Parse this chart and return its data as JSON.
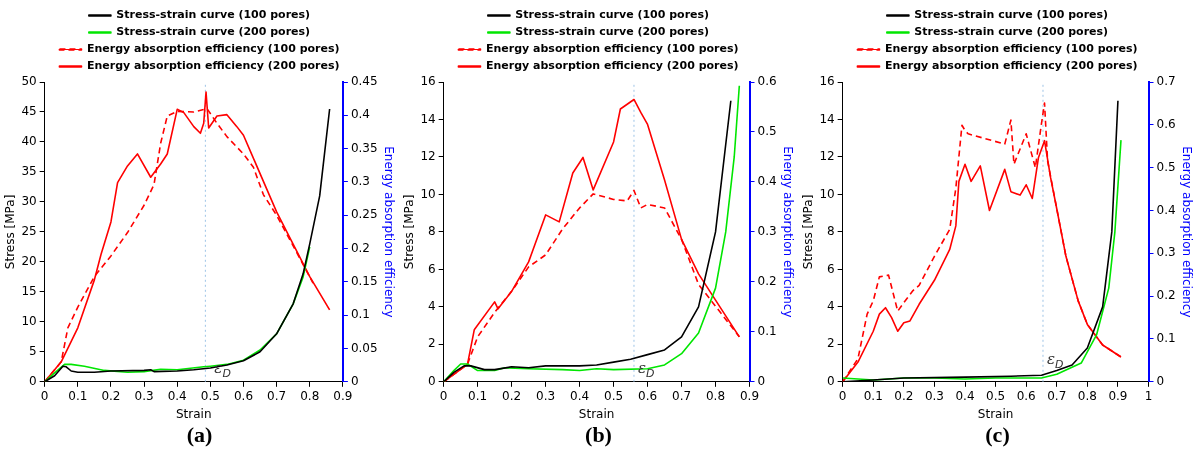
{
  "chart_data": [
    {
      "type": "line",
      "title": "(a)",
      "xlabel": "Strain",
      "ylabel": "Stress [MPa]",
      "y2label": "Energy absorption efficiency",
      "legend": "top",
      "grid": false,
      "marker": "none",
      "xlim": [
        0,
        0.9
      ],
      "xticks": [
        0,
        0.1,
        0.2,
        0.3,
        0.4,
        0.5,
        0.6,
        0.7,
        0.8,
        0.9
      ],
      "ylim": [
        0,
        50
      ],
      "yticks": [
        0,
        5,
        10,
        15,
        20,
        25,
        30,
        35,
        40,
        45,
        50
      ],
      "y2lim": [
        0,
        0.45
      ],
      "y2ticks": [
        0,
        0.05,
        0.1,
        0.15,
        0.2,
        0.25,
        0.3,
        0.35,
        0.4,
        0.45
      ],
      "ref_lines": [
        {
          "axis": "x",
          "value": 0.485,
          "color": "#9dc3e6",
          "line_style": "dotted"
        }
      ],
      "annotations": [
        {
          "text": "ε$_{D}$",
          "x": 0.5,
          "y": 1
        }
      ],
      "series": [
        {
          "name": "Stress-strain curve (100 pores)",
          "color": "#000000",
          "line_style": "solid",
          "x": [
            0,
            0.03,
            0.055,
            0.065,
            0.08,
            0.1,
            0.15,
            0.2,
            0.3,
            0.32,
            0.33,
            0.4,
            0.45,
            0.5,
            0.55,
            0.6,
            0.65,
            0.7,
            0.75,
            0.78,
            0.8,
            0.83,
            0.86
          ],
          "values": [
            0,
            1,
            2.6,
            2.5,
            1.8,
            1.6,
            1.6,
            1.8,
            1.9,
            2,
            1.7,
            1.8,
            2,
            2.3,
            2.8,
            3.5,
            5,
            8,
            13,
            18,
            23,
            31,
            45.5
          ]
        },
        {
          "name": "Stress-strain curve (200 pores)",
          "color": "#00e600",
          "line_style": "solid",
          "x": [
            0,
            0.03,
            0.06,
            0.08,
            0.12,
            0.18,
            0.25,
            0.3,
            0.35,
            0.4,
            0.48,
            0.5,
            0.55,
            0.6,
            0.65,
            0.7,
            0.75,
            0.78,
            0.8
          ],
          "values": [
            0,
            1.5,
            2.9,
            2.9,
            2.6,
            1.9,
            1.6,
            1.7,
            2.1,
            2,
            2.5,
            2.6,
            2.9,
            3.6,
            5.3,
            8,
            13,
            17.5,
            22.5
          ]
        },
        {
          "name": "Energy absorption efficiency (100 pores)",
          "color": "#ff0000",
          "line_style": "dashed",
          "axis": "y2",
          "x": [
            0,
            0.05,
            0.07,
            0.1,
            0.15,
            0.2,
            0.25,
            0.3,
            0.33,
            0.35,
            0.37,
            0.4,
            0.45,
            0.49,
            0.52,
            0.55,
            0.6,
            0.63,
            0.66,
            0.7,
            0.75,
            0.81
          ],
          "values": [
            0,
            0.03,
            0.081,
            0.112,
            0.158,
            0.189,
            0.224,
            0.265,
            0.296,
            0.358,
            0.399,
            0.406,
            0.405,
            0.41,
            0.388,
            0.368,
            0.342,
            0.322,
            0.281,
            0.25,
            0.204,
            0.148
          ]
        },
        {
          "name": "Energy absorption efficiency (200 pores)",
          "color": "#ff0000",
          "line_style": "solid",
          "axis": "y2",
          "x": [
            0,
            0.05,
            0.1,
            0.15,
            0.17,
            0.2,
            0.22,
            0.25,
            0.28,
            0.32,
            0.35,
            0.37,
            0.4,
            0.42,
            0.45,
            0.47,
            0.48,
            0.487,
            0.495,
            0.52,
            0.55,
            0.58,
            0.6,
            0.62,
            0.7,
            0.8,
            0.86
          ],
          "values": [
            0,
            0.03,
            0.081,
            0.153,
            0.191,
            0.24,
            0.299,
            0.324,
            0.342,
            0.307,
            0.327,
            0.342,
            0.409,
            0.404,
            0.383,
            0.373,
            0.388,
            0.435,
            0.381,
            0.399,
            0.401,
            0.383,
            0.37,
            0.347,
            0.255,
            0.158,
            0.108
          ]
        }
      ]
    },
    {
      "type": "line",
      "title": "(b)",
      "xlabel": "Strain",
      "ylabel": "Stress [MPa]",
      "y2label": "Energy absorption efficiency",
      "legend": "top",
      "grid": false,
      "marker": "none",
      "xlim": [
        0,
        0.9
      ],
      "xticks": [
        0,
        0.1,
        0.2,
        0.3,
        0.4,
        0.5,
        0.6,
        0.7,
        0.8,
        0.9
      ],
      "ylim": [
        0,
        16
      ],
      "yticks": [
        0,
        2,
        4,
        6,
        8,
        10,
        12,
        14,
        16
      ],
      "y2lim": [
        0,
        0.6
      ],
      "y2ticks": [
        0,
        0.1,
        0.2,
        0.3,
        0.4,
        0.5,
        0.6
      ],
      "ref_lines": [
        {
          "axis": "x",
          "value": 0.56,
          "color": "#9dc3e6",
          "line_style": "dotted"
        }
      ],
      "annotations": [
        {
          "text": "ε$_{D}$",
          "x": 0.56,
          "y": 0.3
        }
      ],
      "series": [
        {
          "name": "Stress-strain curve (100 pores)",
          "color": "#000000",
          "line_style": "solid",
          "x": [
            0,
            0.03,
            0.06,
            0.08,
            0.12,
            0.15,
            0.2,
            0.25,
            0.3,
            0.4,
            0.45,
            0.5,
            0.55,
            0.6,
            0.65,
            0.7,
            0.75,
            0.8,
            0.845
          ],
          "values": [
            0,
            0.5,
            0.85,
            0.85,
            0.65,
            0.65,
            0.8,
            0.75,
            0.85,
            0.85,
            0.9,
            1.05,
            1.2,
            1.45,
            1.7,
            2.4,
            4,
            8,
            15
          ]
        },
        {
          "name": "Stress-strain curve (200 pores)",
          "color": "#00e600",
          "line_style": "solid",
          "x": [
            0,
            0.03,
            0.05,
            0.07,
            0.1,
            0.15,
            0.18,
            0.25,
            0.35,
            0.4,
            0.45,
            0.5,
            0.6,
            0.65,
            0.7,
            0.75,
            0.8,
            0.83,
            0.855,
            0.87
          ],
          "values": [
            0,
            0.6,
            0.95,
            0.95,
            0.6,
            0.6,
            0.75,
            0.7,
            0.65,
            0.6,
            0.7,
            0.65,
            0.7,
            0.9,
            1.5,
            2.6,
            5,
            8,
            12,
            15.8
          ]
        },
        {
          "name": "Energy absorption efficiency (100 pores)",
          "color": "#ff0000",
          "line_style": "dashed",
          "axis": "y2",
          "x": [
            0,
            0.07,
            0.1,
            0.15,
            0.2,
            0.25,
            0.3,
            0.35,
            0.4,
            0.44,
            0.5,
            0.54,
            0.56,
            0.58,
            0.6,
            0.65,
            0.7,
            0.75,
            0.87
          ],
          "values": [
            0,
            0.035,
            0.09,
            0.139,
            0.181,
            0.23,
            0.254,
            0.306,
            0.348,
            0.376,
            0.365,
            0.362,
            0.383,
            0.348,
            0.355,
            0.348,
            0.285,
            0.195,
            0.09
          ]
        },
        {
          "name": "Energy absorption efficiency (200 pores)",
          "color": "#ff0000",
          "line_style": "solid",
          "axis": "y2",
          "x": [
            0,
            0.07,
            0.09,
            0.15,
            0.16,
            0.2,
            0.25,
            0.3,
            0.34,
            0.38,
            0.41,
            0.44,
            0.5,
            0.52,
            0.56,
            0.58,
            0.6,
            0.65,
            0.7,
            0.75,
            0.87
          ],
          "values": [
            0,
            0.035,
            0.104,
            0.16,
            0.146,
            0.181,
            0.24,
            0.334,
            0.32,
            0.418,
            0.449,
            0.384,
            0.48,
            0.546,
            0.565,
            0.539,
            0.515,
            0.404,
            0.285,
            0.216,
            0.09
          ]
        }
      ]
    },
    {
      "type": "line",
      "title": "(c)",
      "xlabel": "Strain",
      "ylabel": "Stress [MPa]",
      "y2label": "Energy absorption efficiency",
      "legend": "top",
      "grid": false,
      "marker": "none",
      "xlim": [
        0,
        1
      ],
      "xticks": [
        0,
        0.1,
        0.2,
        0.3,
        0.4,
        0.5,
        0.6,
        0.7,
        0.8,
        0.9,
        1
      ],
      "ylim": [
        0,
        16
      ],
      "yticks": [
        0,
        2,
        4,
        6,
        8,
        10,
        12,
        14,
        16
      ],
      "y2lim": [
        0,
        0.7
      ],
      "y2ticks": [
        0,
        0.1,
        0.2,
        0.3,
        0.4,
        0.5,
        0.6,
        0.7
      ],
      "ref_lines": [
        {
          "axis": "x",
          "value": 0.655,
          "color": "#9dc3e6",
          "line_style": "dotted"
        }
      ],
      "annotations": [
        {
          "text": "ε$_{D}$",
          "x": 0.655,
          "y": 0.8
        }
      ],
      "series": [
        {
          "name": "Stress-strain curve (100 pores)",
          "color": "#000000",
          "line_style": "solid",
          "x": [
            0,
            0.1,
            0.2,
            0.4,
            0.55,
            0.65,
            0.7,
            0.75,
            0.8,
            0.85,
            0.88,
            0.9
          ],
          "values": [
            0,
            0.1,
            0.2,
            0.25,
            0.3,
            0.35,
            0.6,
            0.9,
            1.8,
            4,
            8,
            15
          ]
        },
        {
          "name": "Stress-strain curve (200 pores)",
          "color": "#00e600",
          "line_style": "solid",
          "x": [
            0,
            0.1,
            0.2,
            0.3,
            0.4,
            0.5,
            0.65,
            0.7,
            0.78,
            0.83,
            0.87,
            0.89,
            0.91
          ],
          "values": [
            0.2,
            0.1,
            0.2,
            0.2,
            0.15,
            0.2,
            0.2,
            0.4,
            1,
            2.5,
            5,
            8,
            12.9
          ]
        },
        {
          "name": "Energy absorption efficiency (100 pores)",
          "color": "#ff0000",
          "line_style": "dashed",
          "axis": "y2",
          "x": [
            0,
            0.05,
            0.08,
            0.1,
            0.12,
            0.15,
            0.18,
            0.2,
            0.23,
            0.25,
            0.3,
            0.35,
            0.37,
            0.39,
            0.4,
            0.41,
            0.53,
            0.55,
            0.56,
            0.6,
            0.63,
            0.65,
            0.66,
            0.67,
            0.7,
            0.73,
            0.77,
            0.8,
            0.85,
            0.91
          ],
          "values": [
            0,
            0.054,
            0.158,
            0.189,
            0.245,
            0.249,
            0.165,
            0.185,
            0.213,
            0.225,
            0.293,
            0.356,
            0.452,
            0.599,
            0.587,
            0.579,
            0.555,
            0.611,
            0.508,
            0.579,
            0.5,
            0.603,
            0.651,
            0.516,
            0.404,
            0.293,
            0.189,
            0.134,
            0.086,
            0.058
          ]
        },
        {
          "name": "Energy absorption efficiency (200 pores)",
          "color": "#ff0000",
          "line_style": "solid",
          "axis": "y2",
          "x": [
            0,
            0.05,
            0.1,
            0.12,
            0.14,
            0.16,
            0.18,
            0.2,
            0.22,
            0.25,
            0.3,
            0.35,
            0.37,
            0.38,
            0.4,
            0.42,
            0.45,
            0.48,
            0.53,
            0.55,
            0.58,
            0.6,
            0.62,
            0.64,
            0.66,
            0.68,
            0.7,
            0.73,
            0.77,
            0.8,
            0.85,
            0.91
          ],
          "values": [
            0,
            0.046,
            0.118,
            0.158,
            0.173,
            0.15,
            0.118,
            0.138,
            0.142,
            0.181,
            0.237,
            0.309,
            0.364,
            0.468,
            0.508,
            0.468,
            0.504,
            0.4,
            0.496,
            0.444,
            0.436,
            0.46,
            0.428,
            0.523,
            0.563,
            0.476,
            0.404,
            0.293,
            0.189,
            0.134,
            0.086,
            0.058
          ]
        }
      ]
    }
  ]
}
